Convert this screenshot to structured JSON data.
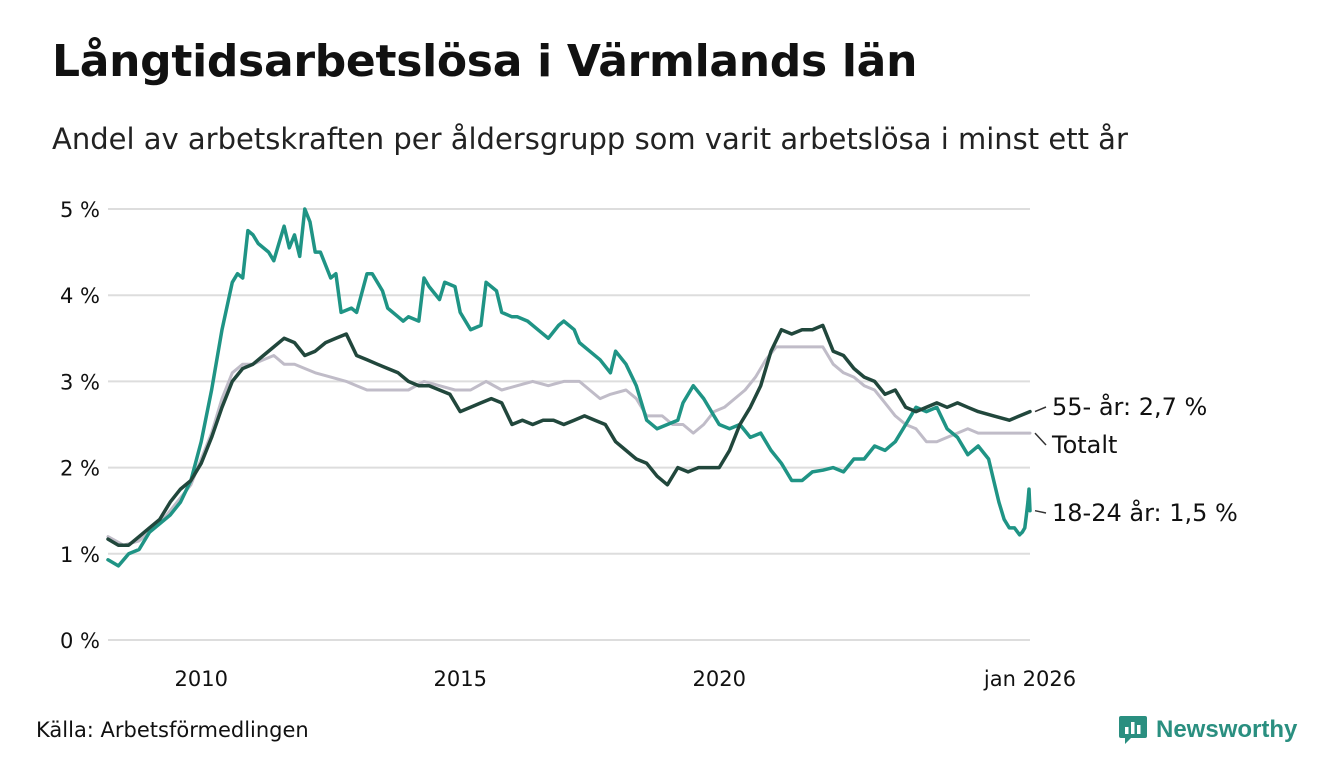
{
  "header": {
    "title": "Långtidsarbetslösa i Värmlands län",
    "subtitle": "Andel av arbetskraften per åldersgrupp som varit arbetslösa i minst ett år"
  },
  "footer": {
    "source": "Källa: Arbetsförmedlingen",
    "brand": "Newsworthy",
    "brand_icon": "bar-chart-speech-icon"
  },
  "colors": {
    "age_55": "#21473c",
    "total": "#c0bcc8",
    "age_18_24": "#1f9485",
    "grid": "#dddddd",
    "brand": "#2a8f80"
  },
  "chart_data": {
    "type": "line",
    "title": "Långtidsarbetslösa i Värmlands län",
    "subtitle": "Andel av arbetskraften per åldersgrupp som varit arbetslösa i minst ett år",
    "xlabel": "",
    "ylabel": "",
    "xlim": [
      2008.2,
      2026.0
    ],
    "ylim": [
      0,
      5
    ],
    "y_ticks": [
      {
        "value": 0,
        "label": "0 %"
      },
      {
        "value": 1,
        "label": "1 %"
      },
      {
        "value": 2,
        "label": "2 %"
      },
      {
        "value": 3,
        "label": "3 %"
      },
      {
        "value": 4,
        "label": "4 %"
      },
      {
        "value": 5,
        "label": "5 %"
      }
    ],
    "x_ticks": [
      {
        "value": 2010,
        "label": "2010"
      },
      {
        "value": 2015,
        "label": "2015"
      },
      {
        "value": 2020,
        "label": "2020"
      },
      {
        "value": 2026,
        "label": "jan 2026"
      }
    ],
    "grid": true,
    "legend": "direct labels at right end of each line",
    "series": [
      {
        "key": "total",
        "name": "Totalt",
        "end_label": "Totalt",
        "color": "#c0bcc8",
        "points": [
          [
            2008.2,
            1.2
          ],
          [
            2008.5,
            1.1
          ],
          [
            2008.8,
            1.15
          ],
          [
            2009.0,
            1.25
          ],
          [
            2009.2,
            1.35
          ],
          [
            2009.4,
            1.5
          ],
          [
            2009.6,
            1.65
          ],
          [
            2009.8,
            1.8
          ],
          [
            2010.0,
            2.1
          ],
          [
            2010.2,
            2.4
          ],
          [
            2010.4,
            2.8
          ],
          [
            2010.6,
            3.1
          ],
          [
            2010.8,
            3.2
          ],
          [
            2011.0,
            3.2
          ],
          [
            2011.2,
            3.25
          ],
          [
            2011.4,
            3.3
          ],
          [
            2011.6,
            3.2
          ],
          [
            2011.8,
            3.2
          ],
          [
            2012.0,
            3.15
          ],
          [
            2012.2,
            3.1
          ],
          [
            2012.5,
            3.05
          ],
          [
            2012.8,
            3.0
          ],
          [
            2013.0,
            2.95
          ],
          [
            2013.2,
            2.9
          ],
          [
            2013.5,
            2.9
          ],
          [
            2013.8,
            2.9
          ],
          [
            2014.0,
            2.9
          ],
          [
            2014.3,
            3.0
          ],
          [
            2014.6,
            2.95
          ],
          [
            2014.9,
            2.9
          ],
          [
            2015.2,
            2.9
          ],
          [
            2015.5,
            3.0
          ],
          [
            2015.8,
            2.9
          ],
          [
            2016.1,
            2.95
          ],
          [
            2016.4,
            3.0
          ],
          [
            2016.7,
            2.95
          ],
          [
            2017.0,
            3.0
          ],
          [
            2017.3,
            3.0
          ],
          [
            2017.5,
            2.9
          ],
          [
            2017.7,
            2.8
          ],
          [
            2017.9,
            2.85
          ],
          [
            2018.2,
            2.9
          ],
          [
            2018.4,
            2.8
          ],
          [
            2018.6,
            2.6
          ],
          [
            2018.9,
            2.6
          ],
          [
            2019.1,
            2.5
          ],
          [
            2019.3,
            2.5
          ],
          [
            2019.5,
            2.4
          ],
          [
            2019.7,
            2.5
          ],
          [
            2019.9,
            2.65
          ],
          [
            2020.1,
            2.7
          ],
          [
            2020.3,
            2.8
          ],
          [
            2020.5,
            2.9
          ],
          [
            2020.7,
            3.05
          ],
          [
            2020.9,
            3.25
          ],
          [
            2021.1,
            3.4
          ],
          [
            2021.4,
            3.4
          ],
          [
            2021.7,
            3.4
          ],
          [
            2022.0,
            3.4
          ],
          [
            2022.2,
            3.2
          ],
          [
            2022.4,
            3.1
          ],
          [
            2022.6,
            3.05
          ],
          [
            2022.8,
            2.95
          ],
          [
            2023.0,
            2.9
          ],
          [
            2023.2,
            2.75
          ],
          [
            2023.4,
            2.6
          ],
          [
            2023.6,
            2.5
          ],
          [
            2023.8,
            2.45
          ],
          [
            2024.0,
            2.3
          ],
          [
            2024.2,
            2.3
          ],
          [
            2024.4,
            2.35
          ],
          [
            2024.6,
            2.4
          ],
          [
            2024.8,
            2.45
          ],
          [
            2025.0,
            2.4
          ],
          [
            2025.3,
            2.4
          ],
          [
            2025.6,
            2.4
          ],
          [
            2026.0,
            2.4
          ]
        ]
      },
      {
        "key": "age_18_24",
        "name": "18-24 år",
        "end_label": "18-24 år: 1,5 %",
        "color": "#1f9485",
        "points": [
          [
            2008.2,
            0.93
          ],
          [
            2008.4,
            0.86
          ],
          [
            2008.6,
            1.0
          ],
          [
            2008.8,
            1.05
          ],
          [
            2009.0,
            1.25
          ],
          [
            2009.2,
            1.35
          ],
          [
            2009.4,
            1.45
          ],
          [
            2009.6,
            1.6
          ],
          [
            2009.8,
            1.85
          ],
          [
            2010.0,
            2.3
          ],
          [
            2010.2,
            2.9
          ],
          [
            2010.4,
            3.6
          ],
          [
            2010.6,
            4.15
          ],
          [
            2010.7,
            4.25
          ],
          [
            2010.8,
            4.2
          ],
          [
            2010.9,
            4.75
          ],
          [
            2011.0,
            4.7
          ],
          [
            2011.1,
            4.6
          ],
          [
            2011.3,
            4.5
          ],
          [
            2011.4,
            4.4
          ],
          [
            2011.5,
            4.6
          ],
          [
            2011.6,
            4.8
          ],
          [
            2011.7,
            4.55
          ],
          [
            2011.8,
            4.7
          ],
          [
            2011.9,
            4.45
          ],
          [
            2012.0,
            5.0
          ],
          [
            2012.1,
            4.85
          ],
          [
            2012.2,
            4.5
          ],
          [
            2012.3,
            4.5
          ],
          [
            2012.5,
            4.2
          ],
          [
            2012.6,
            4.25
          ],
          [
            2012.7,
            3.8
          ],
          [
            2012.9,
            3.85
          ],
          [
            2013.0,
            3.8
          ],
          [
            2013.2,
            4.25
          ],
          [
            2013.3,
            4.25
          ],
          [
            2013.5,
            4.05
          ],
          [
            2013.6,
            3.85
          ],
          [
            2013.8,
            3.75
          ],
          [
            2013.9,
            3.7
          ],
          [
            2014.0,
            3.75
          ],
          [
            2014.2,
            3.7
          ],
          [
            2014.3,
            4.2
          ],
          [
            2014.4,
            4.1
          ],
          [
            2014.6,
            3.95
          ],
          [
            2014.7,
            4.15
          ],
          [
            2014.9,
            4.1
          ],
          [
            2015.0,
            3.8
          ],
          [
            2015.2,
            3.6
          ],
          [
            2015.4,
            3.65
          ],
          [
            2015.5,
            4.15
          ],
          [
            2015.6,
            4.1
          ],
          [
            2015.7,
            4.05
          ],
          [
            2015.8,
            3.8
          ],
          [
            2016.0,
            3.75
          ],
          [
            2016.1,
            3.75
          ],
          [
            2016.3,
            3.7
          ],
          [
            2016.5,
            3.6
          ],
          [
            2016.7,
            3.5
          ],
          [
            2016.9,
            3.65
          ],
          [
            2017.0,
            3.7
          ],
          [
            2017.2,
            3.6
          ],
          [
            2017.3,
            3.45
          ],
          [
            2017.5,
            3.35
          ],
          [
            2017.7,
            3.25
          ],
          [
            2017.9,
            3.1
          ],
          [
            2018.0,
            3.35
          ],
          [
            2018.2,
            3.2
          ],
          [
            2018.4,
            2.95
          ],
          [
            2018.5,
            2.75
          ],
          [
            2018.6,
            2.55
          ],
          [
            2018.8,
            2.45
          ],
          [
            2019.0,
            2.5
          ],
          [
            2019.2,
            2.55
          ],
          [
            2019.3,
            2.75
          ],
          [
            2019.5,
            2.95
          ],
          [
            2019.7,
            2.8
          ],
          [
            2019.9,
            2.6
          ],
          [
            2020.0,
            2.5
          ],
          [
            2020.2,
            2.45
          ],
          [
            2020.4,
            2.5
          ],
          [
            2020.6,
            2.35
          ],
          [
            2020.8,
            2.4
          ],
          [
            2021.0,
            2.2
          ],
          [
            2021.2,
            2.05
          ],
          [
            2021.4,
            1.85
          ],
          [
            2021.6,
            1.85
          ],
          [
            2021.8,
            1.95
          ],
          [
            2022.0,
            1.97
          ],
          [
            2022.2,
            2.0
          ],
          [
            2022.4,
            1.95
          ],
          [
            2022.6,
            2.1
          ],
          [
            2022.8,
            2.1
          ],
          [
            2023.0,
            2.25
          ],
          [
            2023.2,
            2.2
          ],
          [
            2023.4,
            2.3
          ],
          [
            2023.6,
            2.5
          ],
          [
            2023.8,
            2.7
          ],
          [
            2024.0,
            2.65
          ],
          [
            2024.2,
            2.7
          ],
          [
            2024.4,
            2.45
          ],
          [
            2024.6,
            2.35
          ],
          [
            2024.8,
            2.15
          ],
          [
            2025.0,
            2.25
          ],
          [
            2025.2,
            2.1
          ],
          [
            2025.3,
            1.85
          ],
          [
            2025.4,
            1.6
          ],
          [
            2025.5,
            1.4
          ],
          [
            2025.6,
            1.3
          ],
          [
            2025.7,
            1.3
          ],
          [
            2025.8,
            1.22
          ],
          [
            2025.85,
            1.25
          ],
          [
            2025.9,
            1.3
          ],
          [
            2025.93,
            1.45
          ],
          [
            2025.96,
            1.6
          ],
          [
            2025.98,
            1.75
          ],
          [
            2026.0,
            1.5
          ]
        ]
      },
      {
        "key": "age_55",
        "name": "55- år",
        "end_label": "55- år: 2,7 %",
        "color": "#21473c",
        "points": [
          [
            2008.2,
            1.17
          ],
          [
            2008.4,
            1.1
          ],
          [
            2008.6,
            1.1
          ],
          [
            2008.8,
            1.2
          ],
          [
            2009.0,
            1.3
          ],
          [
            2009.2,
            1.4
          ],
          [
            2009.4,
            1.6
          ],
          [
            2009.6,
            1.75
          ],
          [
            2009.8,
            1.85
          ],
          [
            2010.0,
            2.05
          ],
          [
            2010.2,
            2.35
          ],
          [
            2010.4,
            2.7
          ],
          [
            2010.6,
            3.0
          ],
          [
            2010.8,
            3.15
          ],
          [
            2011.0,
            3.2
          ],
          [
            2011.2,
            3.3
          ],
          [
            2011.4,
            3.4
          ],
          [
            2011.6,
            3.5
          ],
          [
            2011.8,
            3.45
          ],
          [
            2012.0,
            3.3
          ],
          [
            2012.2,
            3.35
          ],
          [
            2012.4,
            3.45
          ],
          [
            2012.6,
            3.5
          ],
          [
            2012.8,
            3.55
          ],
          [
            2013.0,
            3.3
          ],
          [
            2013.2,
            3.25
          ],
          [
            2013.4,
            3.2
          ],
          [
            2013.6,
            3.15
          ],
          [
            2013.8,
            3.1
          ],
          [
            2014.0,
            3.0
          ],
          [
            2014.2,
            2.95
          ],
          [
            2014.4,
            2.95
          ],
          [
            2014.6,
            2.9
          ],
          [
            2014.8,
            2.85
          ],
          [
            2015.0,
            2.65
          ],
          [
            2015.2,
            2.7
          ],
          [
            2015.4,
            2.75
          ],
          [
            2015.6,
            2.8
          ],
          [
            2015.8,
            2.75
          ],
          [
            2016.0,
            2.5
          ],
          [
            2016.2,
            2.55
          ],
          [
            2016.4,
            2.5
          ],
          [
            2016.6,
            2.55
          ],
          [
            2016.8,
            2.55
          ],
          [
            2017.0,
            2.5
          ],
          [
            2017.2,
            2.55
          ],
          [
            2017.4,
            2.6
          ],
          [
            2017.6,
            2.55
          ],
          [
            2017.8,
            2.5
          ],
          [
            2018.0,
            2.3
          ],
          [
            2018.2,
            2.2
          ],
          [
            2018.4,
            2.1
          ],
          [
            2018.6,
            2.05
          ],
          [
            2018.8,
            1.9
          ],
          [
            2019.0,
            1.8
          ],
          [
            2019.2,
            2.0
          ],
          [
            2019.4,
            1.95
          ],
          [
            2019.6,
            2.0
          ],
          [
            2019.8,
            2.0
          ],
          [
            2020.0,
            2.0
          ],
          [
            2020.2,
            2.2
          ],
          [
            2020.4,
            2.5
          ],
          [
            2020.6,
            2.7
          ],
          [
            2020.8,
            2.95
          ],
          [
            2021.0,
            3.35
          ],
          [
            2021.2,
            3.6
          ],
          [
            2021.4,
            3.55
          ],
          [
            2021.6,
            3.6
          ],
          [
            2021.8,
            3.6
          ],
          [
            2022.0,
            3.65
          ],
          [
            2022.2,
            3.35
          ],
          [
            2022.4,
            3.3
          ],
          [
            2022.6,
            3.15
          ],
          [
            2022.8,
            3.05
          ],
          [
            2023.0,
            3.0
          ],
          [
            2023.2,
            2.85
          ],
          [
            2023.4,
            2.9
          ],
          [
            2023.6,
            2.7
          ],
          [
            2023.8,
            2.65
          ],
          [
            2024.0,
            2.7
          ],
          [
            2024.2,
            2.75
          ],
          [
            2024.4,
            2.7
          ],
          [
            2024.6,
            2.75
          ],
          [
            2024.8,
            2.7
          ],
          [
            2025.0,
            2.65
          ],
          [
            2025.3,
            2.6
          ],
          [
            2025.6,
            2.55
          ],
          [
            2026.0,
            2.65
          ]
        ]
      }
    ]
  }
}
